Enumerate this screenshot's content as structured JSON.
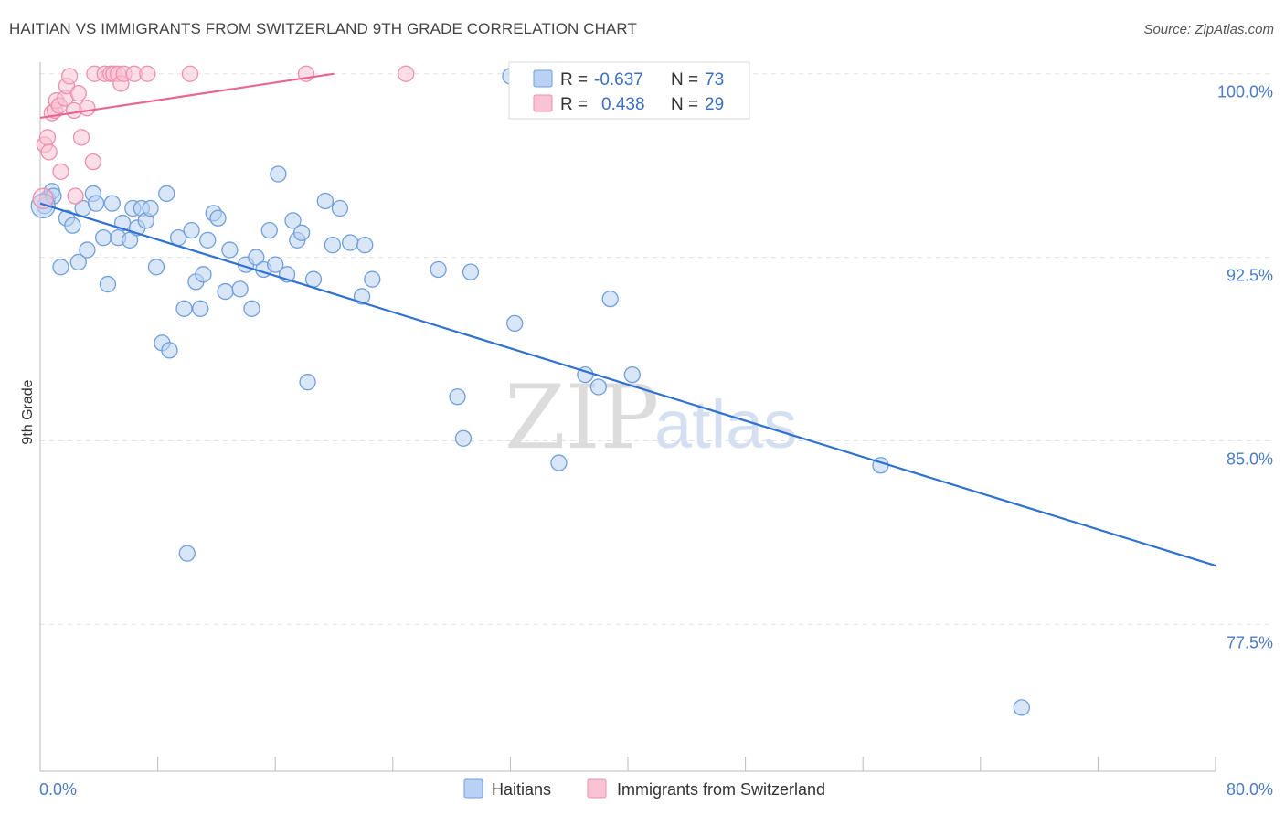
{
  "title": "HAITIAN VS IMMIGRANTS FROM SWITZERLAND 9TH GRADE CORRELATION CHART",
  "source": "Source: ZipAtlas.com",
  "watermark": {
    "zip": "ZIP",
    "atlas": "atlas"
  },
  "colors": {
    "blue_fill": "#b9d1f3",
    "blue_stroke": "#6f9fdc",
    "blue_line": "#2f72d2",
    "pink_fill": "#f9c3d4",
    "pink_stroke": "#ee8fb0",
    "pink_line": "#e8668f",
    "grid": "#e2e2e2",
    "axis": "#bbbbbb",
    "tick_text": "#4a7cc7"
  },
  "chart_data": {
    "type": "scatter",
    "title": "HAITIAN VS IMMIGRANTS FROM SWITZERLAND 9TH GRADE CORRELATION CHART",
    "xlabel": "",
    "ylabel": "9th Grade",
    "xlim": [
      0,
      80
    ],
    "ylim": [
      71.5,
      100.4
    ],
    "x_tick_labels": [
      {
        "value": 0,
        "label": "0.0%"
      },
      {
        "value": 80,
        "label": "80.0%"
      }
    ],
    "y_tick_labels": [
      {
        "value": 100,
        "label": "100.0%"
      },
      {
        "value": 92.5,
        "label": "92.5%"
      },
      {
        "value": 85,
        "label": "85.0%"
      },
      {
        "value": 77.5,
        "label": "77.5%"
      }
    ],
    "legend_position": "bottom",
    "series": [
      {
        "name": "Haitians",
        "color": "#6f9fdc",
        "stats": {
          "r_label": "R =",
          "r": "-0.637",
          "n_label": "N =",
          "n": "73"
        },
        "trendline": {
          "x": [
            0,
            80
          ],
          "y": [
            94.7,
            79.9
          ]
        },
        "points": [
          [
            0.3,
            94.6
          ],
          [
            0.5,
            94.9
          ],
          [
            0.8,
            95.2
          ],
          [
            0.9,
            95.0
          ],
          [
            1.4,
            92.1
          ],
          [
            1.8,
            94.1
          ],
          [
            2.2,
            93.8
          ],
          [
            2.6,
            92.3
          ],
          [
            2.9,
            94.5
          ],
          [
            3.2,
            92.8
          ],
          [
            3.6,
            95.1
          ],
          [
            3.8,
            94.7
          ],
          [
            4.3,
            93.3
          ],
          [
            4.6,
            91.4
          ],
          [
            4.9,
            94.7
          ],
          [
            5.3,
            93.3
          ],
          [
            5.6,
            93.9
          ],
          [
            6.1,
            93.2
          ],
          [
            6.3,
            94.5
          ],
          [
            6.6,
            93.7
          ],
          [
            6.9,
            94.5
          ],
          [
            7.2,
            94.0
          ],
          [
            7.5,
            94.5
          ],
          [
            7.9,
            92.1
          ],
          [
            8.3,
            89.0
          ],
          [
            8.8,
            88.7
          ],
          [
            8.6,
            95.1
          ],
          [
            9.4,
            93.3
          ],
          [
            9.8,
            90.4
          ],
          [
            10.3,
            93.6
          ],
          [
            10.6,
            91.5
          ],
          [
            10.9,
            90.4
          ],
          [
            11.1,
            91.8
          ],
          [
            11.4,
            93.2
          ],
          [
            11.8,
            94.3
          ],
          [
            12.1,
            94.1
          ],
          [
            12.6,
            91.1
          ],
          [
            12.9,
            92.8
          ],
          [
            13.6,
            91.2
          ],
          [
            14.0,
            92.2
          ],
          [
            14.4,
            90.4
          ],
          [
            14.7,
            92.5
          ],
          [
            15.2,
            92.0
          ],
          [
            15.6,
            93.6
          ],
          [
            16.0,
            92.2
          ],
          [
            16.2,
            95.9
          ],
          [
            16.8,
            91.8
          ],
          [
            17.2,
            94.0
          ],
          [
            17.5,
            93.2
          ],
          [
            17.8,
            93.5
          ],
          [
            18.2,
            87.4
          ],
          [
            18.6,
            91.6
          ],
          [
            19.4,
            94.8
          ],
          [
            19.9,
            93.0
          ],
          [
            20.4,
            94.5
          ],
          [
            21.1,
            93.1
          ],
          [
            21.9,
            90.9
          ],
          [
            22.1,
            93.0
          ],
          [
            22.6,
            91.6
          ],
          [
            27.1,
            92.0
          ],
          [
            28.4,
            86.8
          ],
          [
            28.8,
            85.1
          ],
          [
            29.3,
            91.9
          ],
          [
            32.3,
            89.8
          ],
          [
            35.3,
            84.1
          ],
          [
            37.1,
            87.7
          ],
          [
            38.0,
            87.2
          ],
          [
            38.8,
            90.8
          ],
          [
            40.3,
            87.7
          ],
          [
            57.2,
            84.0
          ],
          [
            66.8,
            74.1
          ],
          [
            10.0,
            80.4
          ],
          [
            32.0,
            99.9
          ]
        ]
      },
      {
        "name": "Immigrants from Switzerland",
        "color": "#ee8fb0",
        "stats": {
          "r_label": "R =",
          "r": "0.438",
          "n_label": "N =",
          "n": "29"
        },
        "trendline": {
          "x": [
            0,
            20
          ],
          "y": [
            98.2,
            100.0
          ]
        },
        "points": [
          [
            0.3,
            97.1
          ],
          [
            0.5,
            97.4
          ],
          [
            0.6,
            96.8
          ],
          [
            0.8,
            98.4
          ],
          [
            1.0,
            98.5
          ],
          [
            1.1,
            98.9
          ],
          [
            1.3,
            98.7
          ],
          [
            1.4,
            96.0
          ],
          [
            1.7,
            99.0
          ],
          [
            1.8,
            99.5
          ],
          [
            2.0,
            99.9
          ],
          [
            2.3,
            98.5
          ],
          [
            2.6,
            99.2
          ],
          [
            2.8,
            97.4
          ],
          [
            3.2,
            98.6
          ],
          [
            3.6,
            96.4
          ],
          [
            3.7,
            100.0
          ],
          [
            4.4,
            100.0
          ],
          [
            4.8,
            100.0
          ],
          [
            5.0,
            100.0
          ],
          [
            5.3,
            100.0
          ],
          [
            5.5,
            99.6
          ],
          [
            5.7,
            100.0
          ],
          [
            6.4,
            100.0
          ],
          [
            7.3,
            100.0
          ],
          [
            10.2,
            100.0
          ],
          [
            18.1,
            100.0
          ],
          [
            24.9,
            100.0
          ],
          [
            2.4,
            95.0
          ]
        ]
      }
    ]
  }
}
